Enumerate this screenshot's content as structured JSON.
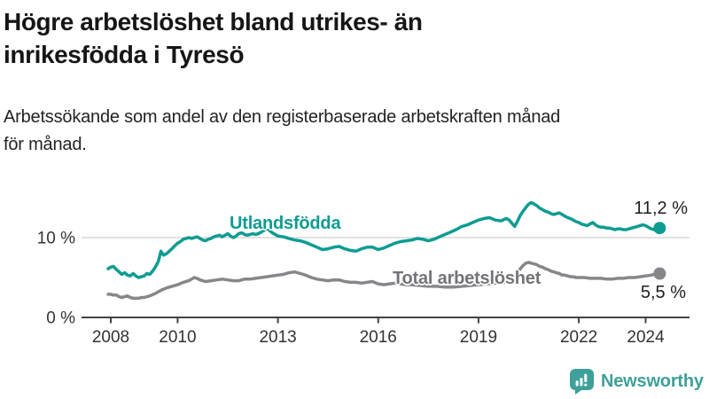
{
  "header": {
    "title_line1": "Högre arbetslöshet bland utrikes- än",
    "title_line2": "inrikesfödda i Tyresö",
    "subtitle_line1": "Arbetssökande som andel av den registerbaserade arbetskraften månad",
    "subtitle_line2": "för månad."
  },
  "chart_data": {
    "type": "line",
    "title": "Högre arbetslöshet bland utrikes- än inrikesfödda i Tyresö",
    "subtitle": "Arbetssökande som andel av den registerbaserade arbetskraften månad för månad.",
    "xlabel": "",
    "ylabel": "",
    "xlim": [
      2007.8,
      2025.3
    ],
    "ylim": [
      0,
      16
    ],
    "grid": "single horizontal gridline at 10 %",
    "legend_position": "inline labels on lines",
    "axis_color": "#444444",
    "grid_color": "#D9D9D9",
    "tick_text_color": "#333333",
    "x_ticks": [
      {
        "value": 2008,
        "label": "2008"
      },
      {
        "value": 2010,
        "label": "2010"
      },
      {
        "value": 2013,
        "label": "2013"
      },
      {
        "value": 2016,
        "label": "2016"
      },
      {
        "value": 2019,
        "label": "2019"
      },
      {
        "value": 2022,
        "label": "2022"
      },
      {
        "value": 2024,
        "label": "2024"
      }
    ],
    "y_ticks": [
      {
        "value": 0,
        "label": "0 %"
      },
      {
        "value": 10,
        "label": "10 %"
      }
    ],
    "series": [
      {
        "name": "Utlandsfödda",
        "color": "#0D9C92",
        "end_value": 11.2,
        "end_label": "11,2 %",
        "points": [
          [
            2007.92,
            6.1
          ],
          [
            2008.0,
            6.3
          ],
          [
            2008.08,
            6.4
          ],
          [
            2008.17,
            6.0
          ],
          [
            2008.25,
            5.7
          ],
          [
            2008.33,
            5.4
          ],
          [
            2008.42,
            5.6
          ],
          [
            2008.5,
            5.3
          ],
          [
            2008.58,
            5.2
          ],
          [
            2008.67,
            5.5
          ],
          [
            2008.75,
            5.2
          ],
          [
            2008.83,
            5.0
          ],
          [
            2008.92,
            5.1
          ],
          [
            2009.0,
            5.2
          ],
          [
            2009.08,
            5.5
          ],
          [
            2009.17,
            5.4
          ],
          [
            2009.25,
            5.8
          ],
          [
            2009.33,
            6.3
          ],
          [
            2009.42,
            7.0
          ],
          [
            2009.5,
            8.3
          ],
          [
            2009.58,
            7.8
          ],
          [
            2009.67,
            8.0
          ],
          [
            2009.75,
            8.3
          ],
          [
            2009.83,
            8.6
          ],
          [
            2009.92,
            9.0
          ],
          [
            2010.0,
            9.3
          ],
          [
            2010.08,
            9.5
          ],
          [
            2010.17,
            9.8
          ],
          [
            2010.25,
            9.9
          ],
          [
            2010.33,
            10.0
          ],
          [
            2010.42,
            9.9
          ],
          [
            2010.5,
            10.0
          ],
          [
            2010.58,
            10.1
          ],
          [
            2010.67,
            9.9
          ],
          [
            2010.75,
            9.7
          ],
          [
            2010.83,
            9.6
          ],
          [
            2010.92,
            9.8
          ],
          [
            2011.0,
            9.9
          ],
          [
            2011.08,
            10.1
          ],
          [
            2011.17,
            10.2
          ],
          [
            2011.25,
            10.3
          ],
          [
            2011.33,
            10.1
          ],
          [
            2011.42,
            10.3
          ],
          [
            2011.5,
            10.5
          ],
          [
            2011.58,
            10.2
          ],
          [
            2011.67,
            10.0
          ],
          [
            2011.75,
            10.2
          ],
          [
            2011.83,
            10.5
          ],
          [
            2011.92,
            10.6
          ],
          [
            2012.0,
            10.4
          ],
          [
            2012.08,
            10.3
          ],
          [
            2012.17,
            10.4
          ],
          [
            2012.25,
            10.5
          ],
          [
            2012.33,
            10.4
          ],
          [
            2012.42,
            10.5
          ],
          [
            2012.5,
            10.7
          ],
          [
            2012.58,
            10.9
          ],
          [
            2012.67,
            11.2
          ],
          [
            2012.75,
            10.9
          ],
          [
            2012.83,
            10.6
          ],
          [
            2012.92,
            10.4
          ],
          [
            2013.0,
            10.2
          ],
          [
            2013.17,
            10.1
          ],
          [
            2013.33,
            9.9
          ],
          [
            2013.5,
            9.7
          ],
          [
            2013.67,
            9.6
          ],
          [
            2013.83,
            9.4
          ],
          [
            2014.0,
            9.1
          ],
          [
            2014.17,
            8.8
          ],
          [
            2014.33,
            8.5
          ],
          [
            2014.5,
            8.6
          ],
          [
            2014.67,
            8.8
          ],
          [
            2014.83,
            8.9
          ],
          [
            2015.0,
            8.6
          ],
          [
            2015.17,
            8.4
          ],
          [
            2015.33,
            8.3
          ],
          [
            2015.5,
            8.6
          ],
          [
            2015.67,
            8.8
          ],
          [
            2015.83,
            8.8
          ],
          [
            2016.0,
            8.5
          ],
          [
            2016.17,
            8.7
          ],
          [
            2016.33,
            9.0
          ],
          [
            2016.5,
            9.3
          ],
          [
            2016.67,
            9.5
          ],
          [
            2016.83,
            9.6
          ],
          [
            2017.0,
            9.7
          ],
          [
            2017.17,
            9.9
          ],
          [
            2017.33,
            9.8
          ],
          [
            2017.5,
            9.6
          ],
          [
            2017.67,
            9.8
          ],
          [
            2017.83,
            10.1
          ],
          [
            2018.0,
            10.4
          ],
          [
            2018.17,
            10.7
          ],
          [
            2018.33,
            11.0
          ],
          [
            2018.5,
            11.4
          ],
          [
            2018.67,
            11.6
          ],
          [
            2018.83,
            11.9
          ],
          [
            2019.0,
            12.2
          ],
          [
            2019.17,
            12.4
          ],
          [
            2019.33,
            12.5
          ],
          [
            2019.5,
            12.2
          ],
          [
            2019.67,
            12.1
          ],
          [
            2019.83,
            12.4
          ],
          [
            2019.92,
            12.2
          ],
          [
            2020.08,
            11.4
          ],
          [
            2020.17,
            12.1
          ],
          [
            2020.25,
            12.8
          ],
          [
            2020.33,
            13.3
          ],
          [
            2020.42,
            13.8
          ],
          [
            2020.5,
            14.2
          ],
          [
            2020.58,
            14.4
          ],
          [
            2020.67,
            14.2
          ],
          [
            2020.75,
            14.0
          ],
          [
            2020.83,
            13.7
          ],
          [
            2020.92,
            13.5
          ],
          [
            2021.0,
            13.3
          ],
          [
            2021.08,
            13.2
          ],
          [
            2021.17,
            13.0
          ],
          [
            2021.25,
            12.9
          ],
          [
            2021.33,
            13.0
          ],
          [
            2021.42,
            13.1
          ],
          [
            2021.5,
            12.9
          ],
          [
            2021.58,
            12.7
          ],
          [
            2021.67,
            12.5
          ],
          [
            2021.75,
            12.4
          ],
          [
            2021.83,
            12.2
          ],
          [
            2021.92,
            12.0
          ],
          [
            2022.0,
            11.9
          ],
          [
            2022.08,
            11.7
          ],
          [
            2022.17,
            11.6
          ],
          [
            2022.25,
            11.5
          ],
          [
            2022.33,
            11.7
          ],
          [
            2022.42,
            11.9
          ],
          [
            2022.5,
            11.6
          ],
          [
            2022.58,
            11.4
          ],
          [
            2022.67,
            11.3
          ],
          [
            2022.75,
            11.3
          ],
          [
            2022.83,
            11.2
          ],
          [
            2022.92,
            11.2
          ],
          [
            2023.0,
            11.1
          ],
          [
            2023.08,
            11.0
          ],
          [
            2023.17,
            11.1
          ],
          [
            2023.25,
            11.1
          ],
          [
            2023.33,
            11.0
          ],
          [
            2023.42,
            11.0
          ],
          [
            2023.5,
            11.1
          ],
          [
            2023.58,
            11.2
          ],
          [
            2023.67,
            11.3
          ],
          [
            2023.75,
            11.4
          ],
          [
            2023.83,
            11.5
          ],
          [
            2023.92,
            11.6
          ],
          [
            2024.0,
            11.5
          ],
          [
            2024.08,
            11.3
          ],
          [
            2024.17,
            11.1
          ],
          [
            2024.25,
            11.0
          ],
          [
            2024.33,
            11.1
          ],
          [
            2024.42,
            11.2
          ]
        ]
      },
      {
        "name": "Total arbetslöshet",
        "color": "#87878B",
        "end_value": 5.5,
        "end_label": "5,5 %",
        "points": [
          [
            2007.92,
            2.9
          ],
          [
            2008.0,
            2.9
          ],
          [
            2008.08,
            2.8
          ],
          [
            2008.17,
            2.8
          ],
          [
            2008.25,
            2.6
          ],
          [
            2008.33,
            2.5
          ],
          [
            2008.42,
            2.6
          ],
          [
            2008.5,
            2.7
          ],
          [
            2008.58,
            2.5
          ],
          [
            2008.67,
            2.4
          ],
          [
            2008.75,
            2.4
          ],
          [
            2008.83,
            2.4
          ],
          [
            2008.92,
            2.5
          ],
          [
            2009.0,
            2.5
          ],
          [
            2009.17,
            2.7
          ],
          [
            2009.33,
            3.0
          ],
          [
            2009.5,
            3.4
          ],
          [
            2009.67,
            3.7
          ],
          [
            2009.83,
            3.9
          ],
          [
            2010.0,
            4.1
          ],
          [
            2010.17,
            4.4
          ],
          [
            2010.33,
            4.6
          ],
          [
            2010.5,
            5.0
          ],
          [
            2010.58,
            4.9
          ],
          [
            2010.67,
            4.7
          ],
          [
            2010.83,
            4.5
          ],
          [
            2011.0,
            4.6
          ],
          [
            2011.17,
            4.7
          ],
          [
            2011.33,
            4.8
          ],
          [
            2011.5,
            4.7
          ],
          [
            2011.67,
            4.6
          ],
          [
            2011.83,
            4.6
          ],
          [
            2012.0,
            4.8
          ],
          [
            2012.17,
            4.8
          ],
          [
            2012.33,
            4.9
          ],
          [
            2012.5,
            5.0
          ],
          [
            2012.67,
            5.1
          ],
          [
            2012.83,
            5.2
          ],
          [
            2013.0,
            5.3
          ],
          [
            2013.17,
            5.4
          ],
          [
            2013.33,
            5.6
          ],
          [
            2013.5,
            5.7
          ],
          [
            2013.67,
            5.5
          ],
          [
            2013.83,
            5.3
          ],
          [
            2014.0,
            5.0
          ],
          [
            2014.17,
            4.8
          ],
          [
            2014.33,
            4.7
          ],
          [
            2014.5,
            4.6
          ],
          [
            2014.67,
            4.7
          ],
          [
            2014.83,
            4.7
          ],
          [
            2015.0,
            4.5
          ],
          [
            2015.17,
            4.4
          ],
          [
            2015.33,
            4.4
          ],
          [
            2015.5,
            4.3
          ],
          [
            2015.67,
            4.4
          ],
          [
            2015.83,
            4.5
          ],
          [
            2016.0,
            4.2
          ],
          [
            2016.17,
            4.1
          ],
          [
            2016.33,
            4.2
          ],
          [
            2016.5,
            4.3
          ],
          [
            2016.67,
            4.2
          ],
          [
            2016.83,
            4.1
          ],
          [
            2017.0,
            4.1
          ],
          [
            2017.25,
            4.0
          ],
          [
            2017.5,
            3.9
          ],
          [
            2017.75,
            3.9
          ],
          [
            2018.0,
            3.8
          ],
          [
            2018.25,
            3.8
          ],
          [
            2018.5,
            3.9
          ],
          [
            2018.75,
            4.0
          ],
          [
            2019.0,
            4.1
          ],
          [
            2019.25,
            4.2
          ],
          [
            2019.5,
            4.3
          ],
          [
            2019.75,
            4.4
          ],
          [
            2019.92,
            4.5
          ],
          [
            2020.08,
            4.9
          ],
          [
            2020.17,
            5.6
          ],
          [
            2020.25,
            6.1
          ],
          [
            2020.33,
            6.5
          ],
          [
            2020.42,
            6.8
          ],
          [
            2020.5,
            6.9
          ],
          [
            2020.58,
            6.8
          ],
          [
            2020.67,
            6.7
          ],
          [
            2020.75,
            6.6
          ],
          [
            2020.83,
            6.4
          ],
          [
            2020.92,
            6.3
          ],
          [
            2021.0,
            6.1
          ],
          [
            2021.08,
            6.0
          ],
          [
            2021.17,
            5.8
          ],
          [
            2021.25,
            5.7
          ],
          [
            2021.33,
            5.6
          ],
          [
            2021.42,
            5.5
          ],
          [
            2021.5,
            5.3
          ],
          [
            2021.58,
            5.3
          ],
          [
            2021.67,
            5.2
          ],
          [
            2021.75,
            5.1
          ],
          [
            2021.83,
            5.1
          ],
          [
            2021.92,
            5.0
          ],
          [
            2022.0,
            5.0
          ],
          [
            2022.17,
            5.0
          ],
          [
            2022.33,
            4.9
          ],
          [
            2022.5,
            4.9
          ],
          [
            2022.67,
            4.9
          ],
          [
            2022.83,
            4.8
          ],
          [
            2023.0,
            4.8
          ],
          [
            2023.17,
            4.9
          ],
          [
            2023.33,
            4.9
          ],
          [
            2023.5,
            5.0
          ],
          [
            2023.67,
            5.0
          ],
          [
            2023.83,
            5.1
          ],
          [
            2024.0,
            5.2
          ],
          [
            2024.17,
            5.3
          ],
          [
            2024.25,
            5.4
          ],
          [
            2024.42,
            5.5
          ]
        ]
      }
    ]
  },
  "logo": {
    "name": "Newsworthy",
    "color": "#3FA09A",
    "icon": "bar-chart-speech-bubble-icon"
  }
}
